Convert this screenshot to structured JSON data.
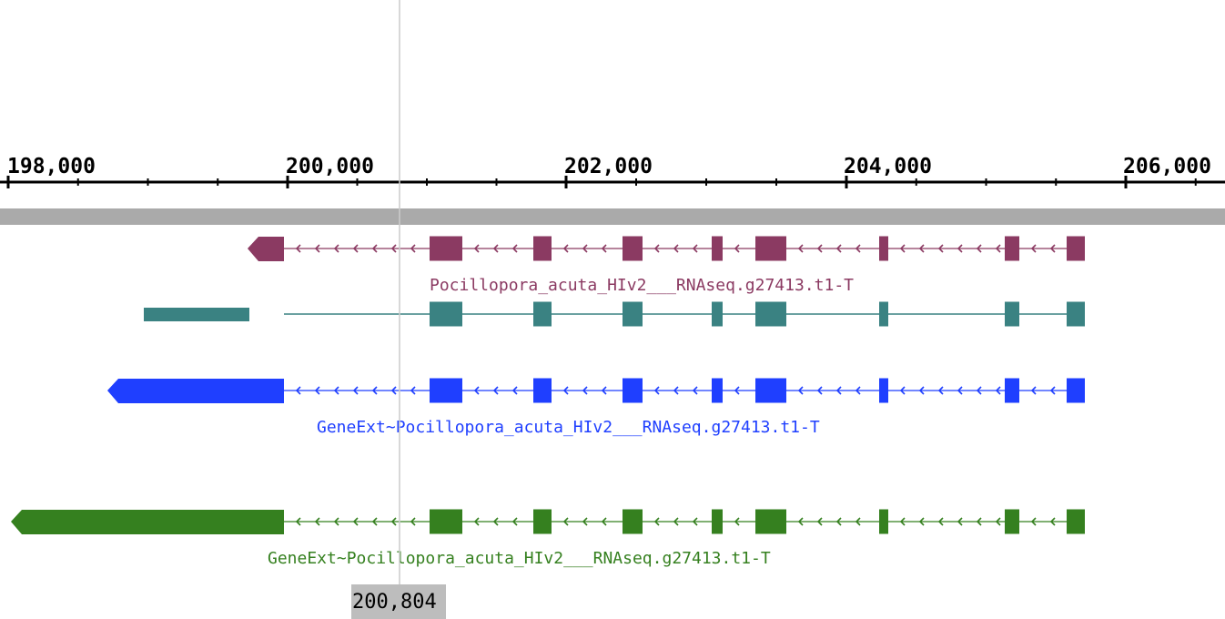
{
  "ruler": {
    "ticks": [
      "198,000",
      "200,000",
      "202,000",
      "204,000",
      "206,000"
    ]
  },
  "cursor": {
    "position_label": "200,804"
  },
  "tracks": [
    {
      "label": "Pocillopora_acuta_HIv2___RNAseq.g27413.t1-T",
      "color": "#8b3a62",
      "style": "arrow-intron",
      "show_label": true
    },
    {
      "label": "",
      "color": "#3a8282",
      "style": "line-intron",
      "show_label": false
    },
    {
      "label": "GeneExt~Pocillopora_acuta_HIv2___RNAseq.g27413.t1-T",
      "color": "#1f3fff",
      "style": "arrow-intron",
      "show_label": true
    },
    {
      "label": "GeneExt~Pocillopora_acuta_HIv2___RNAseq.g27413.t1-T",
      "color": "#35801f",
      "style": "arrow-intron",
      "show_label": true
    }
  ],
  "colors": {
    "sequence_bar": "#aaaaaa",
    "cursor_line": "#cccccc"
  }
}
